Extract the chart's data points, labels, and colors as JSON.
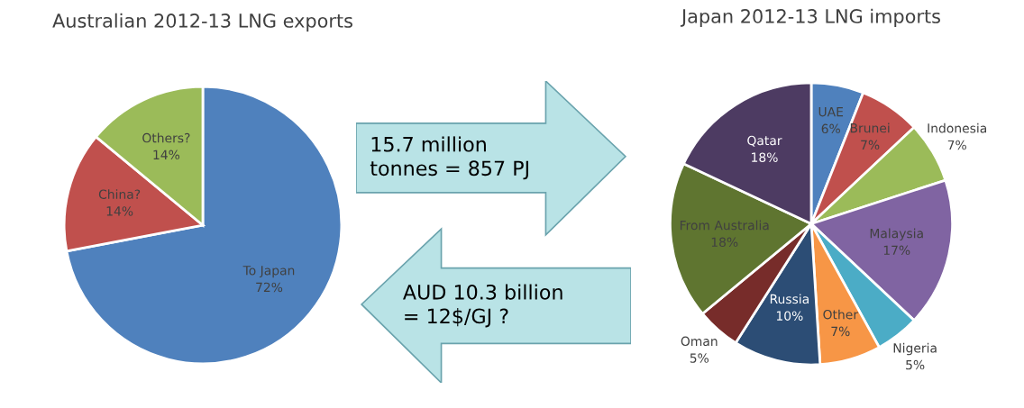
{
  "chart_data": [
    {
      "type": "pie",
      "title": "Australian 2012-13 LNG exports",
      "categories": [
        "To Japan",
        "China?",
        "Others?"
      ],
      "values": [
        72,
        14,
        14
      ],
      "value_labels": [
        "72%",
        "14%",
        "14%"
      ],
      "colors": [
        "#4f81bd",
        "#c0504d",
        "#9bbb59"
      ]
    },
    {
      "type": "other",
      "annotations": [
        "15.7 million\ntonnes = 857 PJ",
        "AUD 10.3 billion\n= 12$/GJ ?"
      ]
    },
    {
      "type": "pie",
      "title": "Japan 2012-13 LNG imports",
      "categories": [
        "UAE",
        "Brunei",
        "Indonesia",
        "Malaysia",
        "Nigeria",
        "Other",
        "Russia",
        "Oman",
        "From Australia",
        "Qatar"
      ],
      "values": [
        6,
        7,
        7,
        17,
        5,
        7,
        10,
        5,
        18,
        18
      ],
      "value_labels": [
        "6%",
        "7%",
        "7%",
        "17%",
        "5%",
        "7%",
        "10%",
        "5%",
        "18%",
        "18%"
      ],
      "colors": [
        "#4f81bd",
        "#c0504d",
        "#9bbb59",
        "#8064a2",
        "#4bacc6",
        "#f79646",
        "#2c4d75",
        "#772c2a",
        "#5f7530",
        "#4d3b62"
      ]
    }
  ]
}
